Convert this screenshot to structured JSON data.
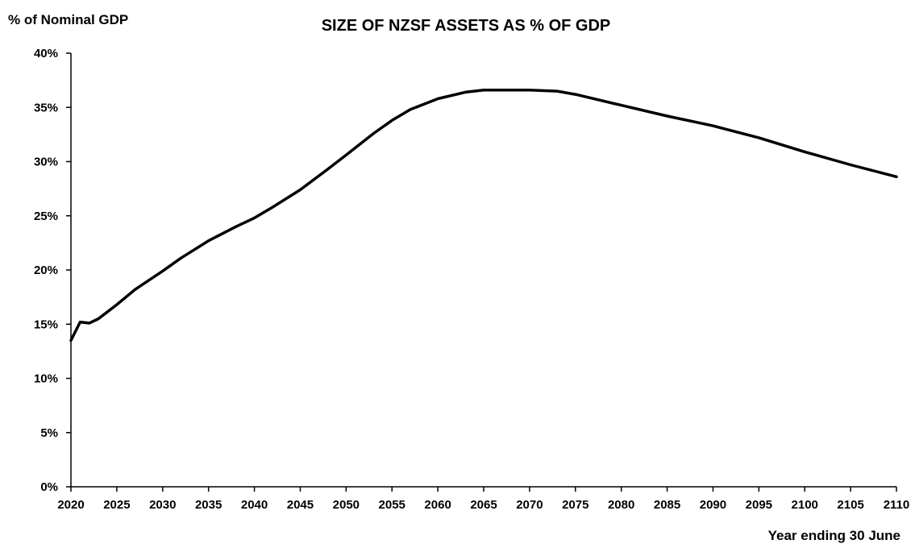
{
  "chart_data": {
    "type": "line",
    "title": "SIZE OF NZSF ASSETS AS % OF GDP",
    "ylabel": "% of Nominal GDP",
    "xlabel": "Year ending 30 June",
    "xlim": [
      2020,
      2110
    ],
    "ylim": [
      0,
      40
    ],
    "x_ticks": [
      "2020",
      "2025",
      "2030",
      "2035",
      "2040",
      "2045",
      "2050",
      "2055",
      "2060",
      "2065",
      "2070",
      "2075",
      "2080",
      "2085",
      "2090",
      "2095",
      "2100",
      "2105",
      "2110"
    ],
    "y_ticks": [
      "0%",
      "5%",
      "10%",
      "15%",
      "20%",
      "25%",
      "30%",
      "35%",
      "40%"
    ],
    "grid": false,
    "legend": "none",
    "line_color": "#000000",
    "series": [
      {
        "x": [
          2020,
          2021,
          2022,
          2023,
          2025,
          2027,
          2030,
          2032,
          2035,
          2038,
          2040,
          2042,
          2045,
          2048,
          2050,
          2053,
          2055,
          2057,
          2060,
          2063,
          2065,
          2070,
          2073,
          2075,
          2078,
          2080,
          2085,
          2090,
          2095,
          2100,
          2105,
          2110
        ],
        "y": [
          13.5,
          15.2,
          15.1,
          15.5,
          16.8,
          18.2,
          19.9,
          21.1,
          22.7,
          24.0,
          24.8,
          25.8,
          27.4,
          29.3,
          30.6,
          32.6,
          33.8,
          34.8,
          35.8,
          36.4,
          36.6,
          36.6,
          36.5,
          36.2,
          35.6,
          35.2,
          34.2,
          33.3,
          32.2,
          30.9,
          29.7,
          28.6
        ]
      }
    ]
  }
}
